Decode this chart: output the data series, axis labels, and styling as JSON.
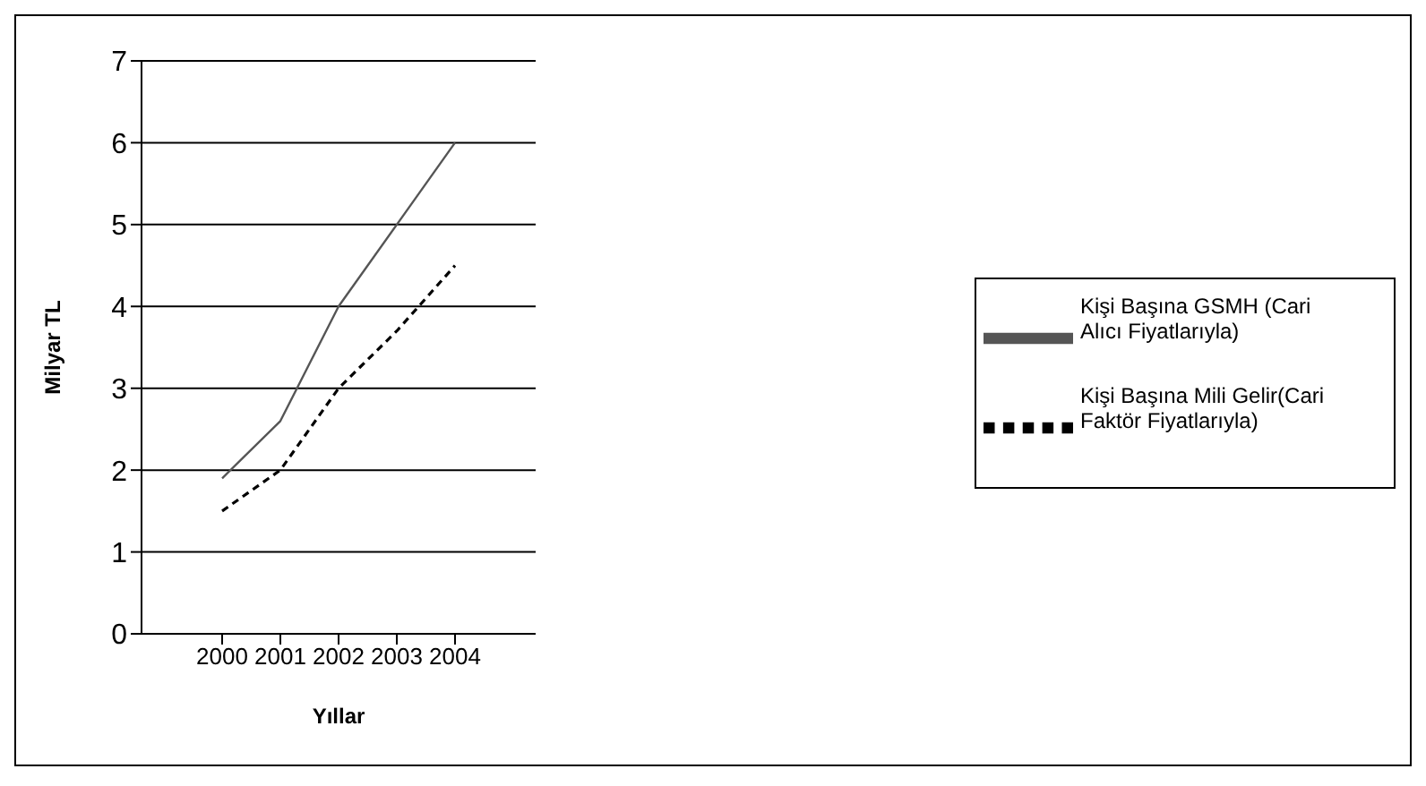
{
  "chart_data": {
    "type": "line",
    "xlabel": "Yıllar",
    "ylabel": "Milyar TL",
    "categories": [
      "2000",
      "2001",
      "2002",
      "2003",
      "2004"
    ],
    "series": [
      {
        "name": "Kişi Başına Mili Gelir(Cari Faktör Fiyatlarıyla)",
        "color": "#000000",
        "line_style": "dashed",
        "values": [
          1.5,
          2.0,
          3.0,
          3.7,
          4.5
        ]
      },
      {
        "name": "Kişi Başına GSMH (Cari Alıcı Fiyatlarıyla)",
        "color": "#555555",
        "line_style": "solid",
        "values": [
          1.9,
          2.6,
          4.0,
          5.0,
          6.0
        ]
      }
    ],
    "ylim": [
      0,
      7
    ],
    "yticks": [
      0,
      1,
      2,
      3,
      4,
      5,
      6,
      7
    ],
    "grid": "y",
    "legend": "right",
    "marker": "none"
  }
}
